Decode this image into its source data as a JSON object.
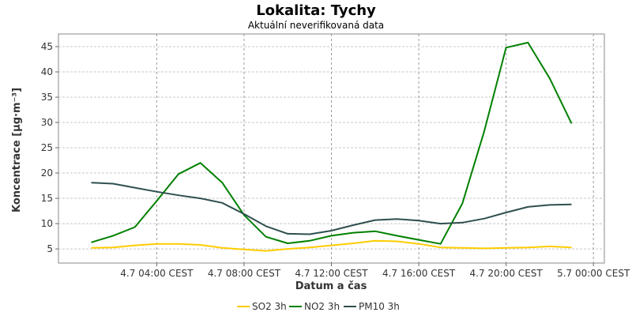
{
  "chart_data": {
    "type": "line",
    "title": "Lokalita: Tychy",
    "subtitle": "Aktuální neverifikovaná data",
    "xlabel": "Datum a čas",
    "ylabel": "Koncentrace [µg·m⁻³]",
    "ylim": [
      2.2,
      47.5
    ],
    "yticks": [
      5,
      10,
      15,
      20,
      25,
      30,
      35,
      40,
      45
    ],
    "xlim": [
      -1.5,
      23.5
    ],
    "xticks": [
      {
        "x": 3,
        "label": "4.7 04:00 CEST"
      },
      {
        "x": 7,
        "label": "4.7 08:00 CEST"
      },
      {
        "x": 11,
        "label": "4.7 12:00 CEST"
      },
      {
        "x": 15,
        "label": "4.7 16:00 CEST"
      },
      {
        "x": 19,
        "label": "4.7 20:00 CEST"
      },
      {
        "x": 23,
        "label": "5.7 00:00 CEST"
      }
    ],
    "x": [
      0,
      1,
      2,
      3,
      4,
      5,
      6,
      7,
      8,
      9,
      10,
      11,
      12,
      13,
      14,
      15,
      16,
      17,
      18,
      19,
      20,
      21,
      22
    ],
    "grid": true,
    "legend_position": "bottom",
    "series": [
      {
        "name": "SO2 3h",
        "color": "#ffcc00",
        "values": [
          5.2,
          5.3,
          5.7,
          6.0,
          6.0,
          5.8,
          5.2,
          4.9,
          4.6,
          5.0,
          5.3,
          5.7,
          6.1,
          6.6,
          6.5,
          6.0,
          5.3,
          5.2,
          5.1,
          5.2,
          5.3,
          5.5,
          5.3
        ]
      },
      {
        "name": "NO2 3h",
        "color": "#008000",
        "values": [
          6.3,
          7.6,
          9.3,
          14.5,
          19.8,
          22.0,
          18.1,
          11.7,
          7.4,
          6.1,
          6.6,
          7.6,
          8.2,
          8.5,
          7.6,
          6.8,
          6.0,
          14.0,
          28.3,
          44.8,
          45.8,
          38.7,
          29.8
        ]
      },
      {
        "name": "PM10 3h",
        "color": "#2f4f4f",
        "values": [
          18.1,
          17.9,
          17.1,
          16.3,
          15.6,
          15.0,
          14.1,
          11.9,
          9.5,
          8.0,
          7.9,
          8.6,
          9.7,
          10.7,
          10.9,
          10.6,
          10.0,
          10.2,
          11.0,
          12.2,
          13.3,
          13.7,
          13.8
        ]
      }
    ]
  }
}
